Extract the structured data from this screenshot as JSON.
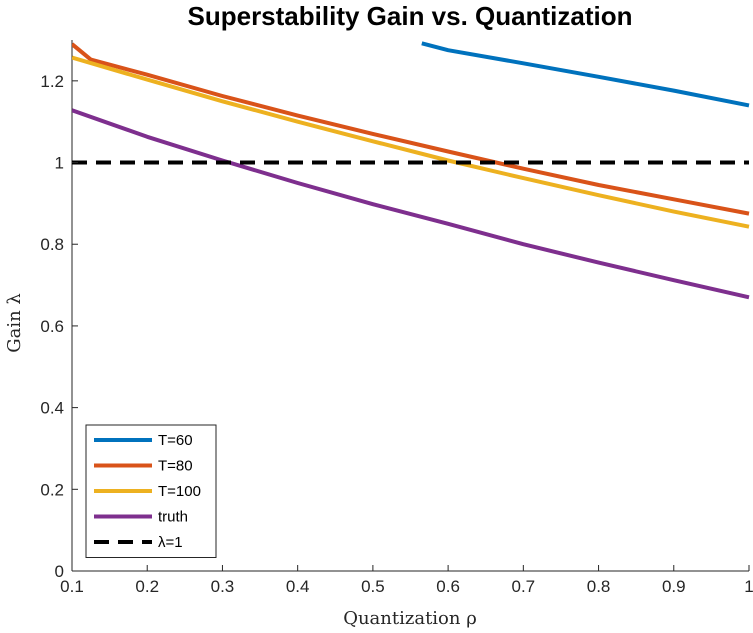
{
  "chart_data": {
    "type": "line",
    "title": "Superstability Gain vs. Quantization",
    "xlabel": "Quantization ρ",
    "ylabel": "Gain λ",
    "xlim": [
      0.1,
      1
    ],
    "ylim": [
      0,
      1.3
    ],
    "xticks": [
      "0.1",
      "0.2",
      "0.3",
      "0.4",
      "0.5",
      "0.6",
      "0.7",
      "0.8",
      "0.9",
      "1"
    ],
    "yticks": [
      "0",
      "0.2",
      "0.4",
      "0.6",
      "0.8",
      "1",
      "1.2"
    ],
    "grid": false,
    "legend_position": "bottom-left",
    "series": [
      {
        "name": "T=60",
        "color": "#0072BD",
        "dash": "solid",
        "x": [
          0.565,
          0.6,
          0.7,
          0.8,
          0.9,
          1.0
        ],
        "y": [
          1.292,
          1.275,
          1.243,
          1.21,
          1.176,
          1.14
        ]
      },
      {
        "name": "T=80",
        "color": "#D95319",
        "dash": "solid",
        "x": [
          0.1,
          0.125,
          0.2,
          0.3,
          0.4,
          0.5,
          0.6,
          0.7,
          0.8,
          0.9,
          1.0
        ],
        "y": [
          1.29,
          1.252,
          1.215,
          1.163,
          1.115,
          1.07,
          1.027,
          0.985,
          0.945,
          0.91,
          0.875
        ]
      },
      {
        "name": "T=100",
        "color": "#EDB120",
        "dash": "solid",
        "x": [
          0.1,
          0.2,
          0.3,
          0.4,
          0.5,
          0.6,
          0.7,
          0.8,
          0.9,
          1.0
        ],
        "y": [
          1.257,
          1.203,
          1.15,
          1.1,
          1.052,
          1.005,
          0.962,
          0.92,
          0.88,
          0.843
        ]
      },
      {
        "name": "truth",
        "color": "#7E2F8E",
        "dash": "solid",
        "x": [
          0.1,
          0.2,
          0.3,
          0.4,
          0.5,
          0.6,
          0.7,
          0.8,
          0.9,
          1.0
        ],
        "y": [
          1.128,
          1.063,
          1.005,
          0.95,
          0.898,
          0.85,
          0.8,
          0.755,
          0.712,
          0.67
        ]
      },
      {
        "name": "λ=1",
        "color": "#000000",
        "dash": "dashed",
        "x": [
          0.1,
          1.0
        ],
        "y": [
          1.0,
          1.0
        ]
      }
    ]
  }
}
